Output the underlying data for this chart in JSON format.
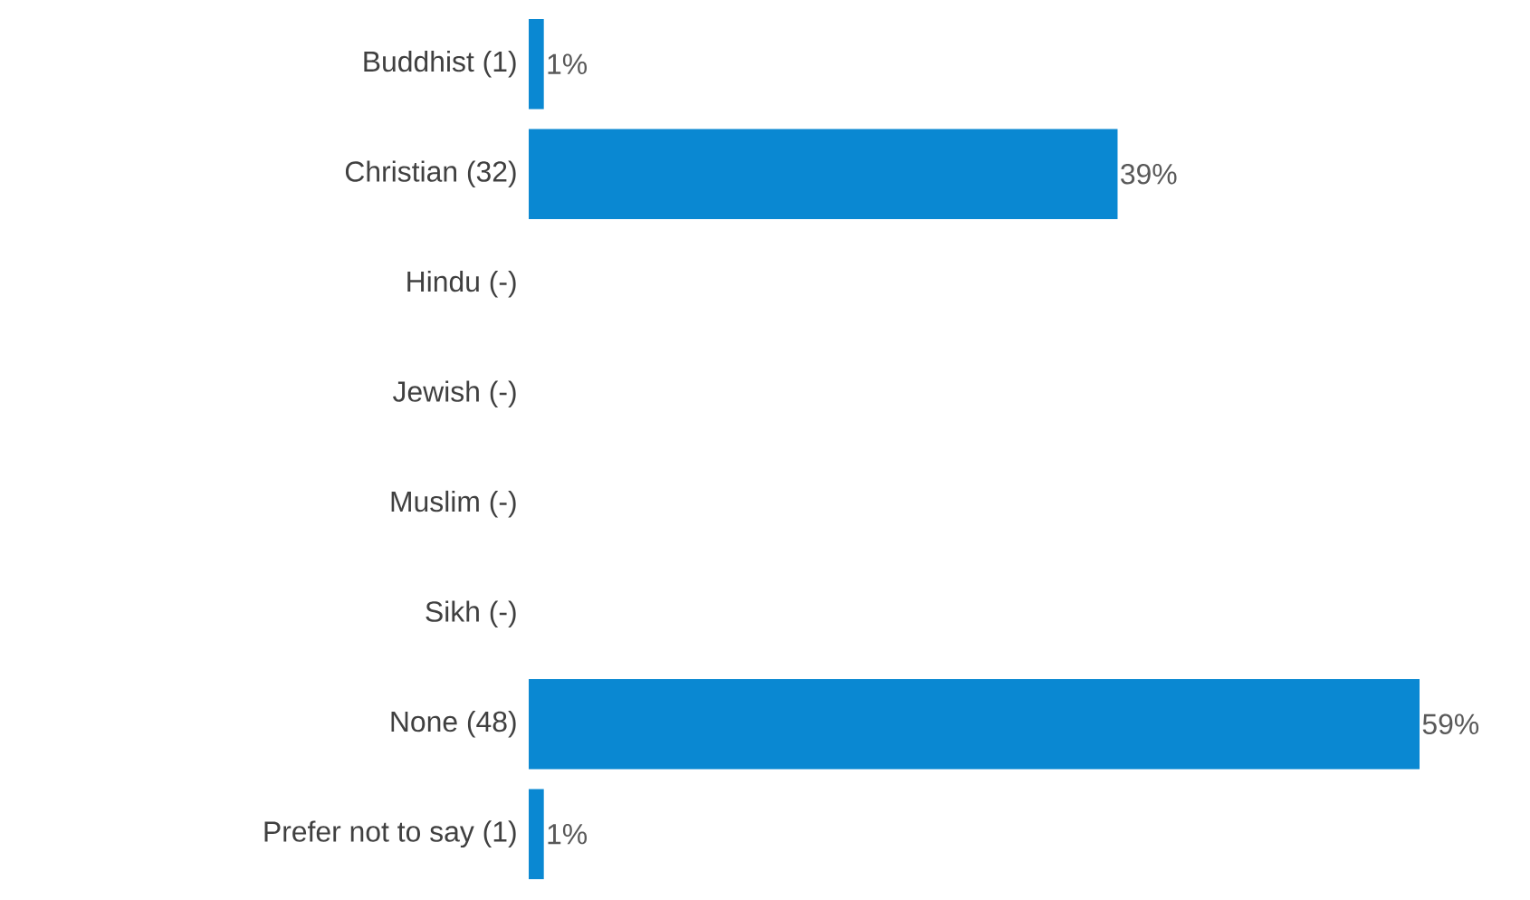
{
  "chart_data": {
    "type": "bar",
    "orientation": "horizontal",
    "categories": [
      "Buddhist (1)",
      "Christian (32)",
      "Hindu (-)",
      "Jewish (-)",
      "Muslim (-)",
      "Sikh (-)",
      "None (48)",
      "Prefer not to say  (1)"
    ],
    "values": [
      1,
      39,
      null,
      null,
      null,
      null,
      59,
      1
    ],
    "value_labels": [
      "1%",
      "39%",
      null,
      null,
      null,
      null,
      "59%",
      "1%"
    ],
    "color": "#0a88d2"
  }
}
